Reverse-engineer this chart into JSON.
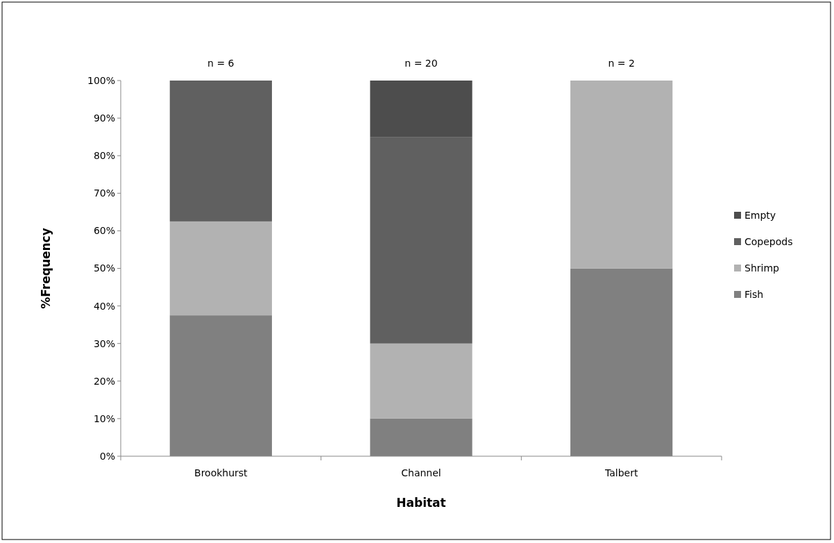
{
  "chart_data": {
    "type": "bar",
    "stacked": true,
    "xlabel": "Habitat",
    "ylabel": "%Frequency",
    "categories": [
      "Brookhurst",
      "Channel",
      "Talbert"
    ],
    "series": [
      {
        "name": "Fish",
        "color": "#808080",
        "values": [
          37.5,
          10,
          50
        ]
      },
      {
        "name": "Shrimp",
        "color": "#b2b2b2",
        "values": [
          25,
          20,
          50
        ]
      },
      {
        "name": "Copepods",
        "color": "#606060",
        "values": [
          37.5,
          55,
          0
        ]
      },
      {
        "name": "Empty",
        "color": "#4d4d4d",
        "values": [
          0,
          15,
          0
        ]
      }
    ],
    "ylim": [
      0,
      100
    ],
    "yticks": [
      {
        "value": 0,
        "label": "0%"
      },
      {
        "value": 10,
        "label": "10%"
      },
      {
        "value": 20,
        "label": "20%"
      },
      {
        "value": 30,
        "label": "30%"
      },
      {
        "value": 40,
        "label": "40%"
      },
      {
        "value": 50,
        "label": "50%"
      },
      {
        "value": 60,
        "label": "60%"
      },
      {
        "value": 70,
        "label": "70%"
      },
      {
        "value": 80,
        "label": "80%"
      },
      {
        "value": 90,
        "label": "90%"
      },
      {
        "value": 100,
        "label": "100%"
      }
    ],
    "annotations": [
      {
        "text": "n = 6",
        "x": "Brookhurst",
        "y": 100
      },
      {
        "text": "n = 20",
        "x": "Channel",
        "y": 100
      },
      {
        "text": "n = 2",
        "x": "Talbert",
        "y": 100
      }
    ],
    "legend": "right",
    "grid": false
  }
}
